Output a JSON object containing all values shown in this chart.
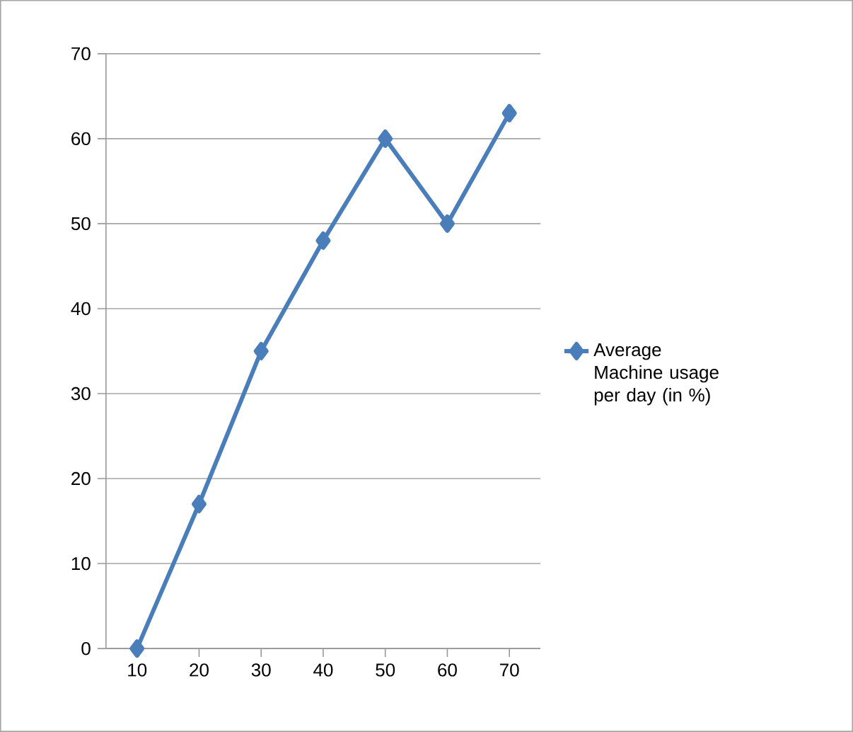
{
  "chart_data": {
    "type": "line",
    "categories": [
      "10",
      "20",
      "30",
      "40",
      "50",
      "60",
      "70"
    ],
    "series": [
      {
        "name": "Average Machine usage per day (in %)",
        "color": "#4a7ebb",
        "values": [
          0,
          17,
          35,
          48,
          60,
          50,
          63
        ]
      }
    ],
    "ylim": [
      0,
      70
    ],
    "yticks": [
      0,
      10,
      20,
      30,
      40,
      50,
      60,
      70
    ],
    "grid": "y",
    "legend": "right",
    "marker": "diamond",
    "line_style": "solid"
  }
}
